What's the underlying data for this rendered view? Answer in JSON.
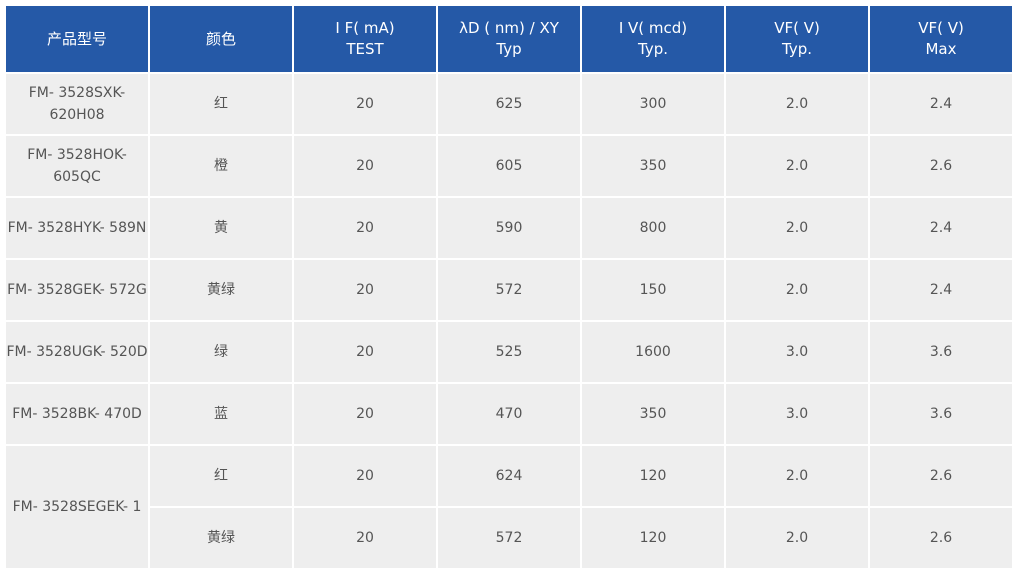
{
  "header": [
    {
      "line1": "产品型号",
      "line2": ""
    },
    {
      "line1": "颜色",
      "line2": ""
    },
    {
      "line1": "I F( mA)",
      "line2": "TEST"
    },
    {
      "line1": "λD ( nm) / XY",
      "line2": "Typ"
    },
    {
      "line1": "I V( mcd)",
      "line2": "Typ."
    },
    {
      "line1": "VF( V)",
      "line2": "Typ."
    },
    {
      "line1": "VF( V)",
      "line2": "Max"
    }
  ],
  "rows": [
    {
      "model": "FM- 3528SXK- 620H08",
      "model_line1": "FM- 3528SXK-",
      "model_line2": "620H08",
      "color": "红",
      "if": "20",
      "wavelength": "625",
      "iv": "300",
      "vf_typ": "2.0",
      "vf_max": "2.4"
    },
    {
      "model": "FM- 3528HOK- 605QC",
      "model_line1": "FM- 3528HOK-",
      "model_line2": "605QC",
      "color": "橙",
      "if": "20",
      "wavelength": "605",
      "iv": "350",
      "vf_typ": "2.0",
      "vf_max": "2.6"
    },
    {
      "model": "FM- 3528HYK- 589N",
      "model_line1": "FM- 3528HYK- 589N",
      "model_line2": "",
      "color": "黄",
      "if": "20",
      "wavelength": "590",
      "iv": "800",
      "vf_typ": "2.0",
      "vf_max": "2.4"
    },
    {
      "model": "FM- 3528GEK- 572G",
      "model_line1": "FM- 3528GEK- 572G",
      "model_line2": "",
      "color": "黄绿",
      "if": "20",
      "wavelength": "572",
      "iv": "150",
      "vf_typ": "2.0",
      "vf_max": "2.4"
    },
    {
      "model": "FM- 3528UGK- 520D",
      "model_line1": "FM- 3528UGK- 520D",
      "model_line2": "",
      "color": "绿",
      "if": "20",
      "wavelength": "525",
      "iv": "1600",
      "vf_typ": "3.0",
      "vf_max": "3.6"
    },
    {
      "model": "FM- 3528BK- 470D",
      "model_line1": "FM- 3528BK- 470D",
      "model_line2": "",
      "color": "蓝",
      "if": "20",
      "wavelength": "470",
      "iv": "350",
      "vf_typ": "3.0",
      "vf_max": "3.6"
    }
  ],
  "bicolor": {
    "model": "FM- 3528SEGEK- 1",
    "subrows": [
      {
        "color": "红",
        "if": "20",
        "wavelength": "624",
        "iv": "120",
        "vf_typ": "2.0",
        "vf_max": "2.6"
      },
      {
        "color": "黄绿",
        "if": "20",
        "wavelength": "572",
        "iv": "120",
        "vf_typ": "2.0",
        "vf_max": "2.6"
      }
    ]
  }
}
